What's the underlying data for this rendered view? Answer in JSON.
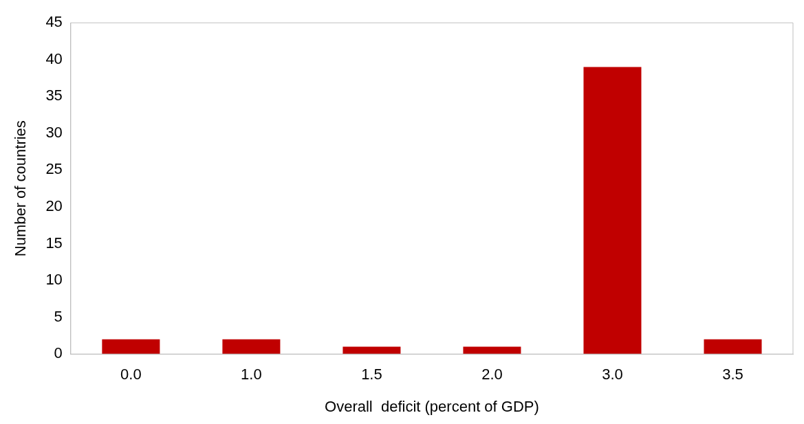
{
  "chart_data": {
    "type": "bar",
    "xlabel": "Overall  deficit (percent of GDP)",
    "ylabel": "Number of countries",
    "categories": [
      "0.0",
      "1.0",
      "1.5",
      "2.0",
      "3.0",
      "3.5"
    ],
    "values": [
      2,
      2,
      1,
      1,
      39,
      2
    ],
    "color": "#c00000",
    "ylim": [
      0,
      45
    ],
    "yticks": [
      0,
      5,
      10,
      15,
      20,
      25,
      30,
      35,
      40,
      45
    ],
    "grid": false,
    "legend": false
  }
}
